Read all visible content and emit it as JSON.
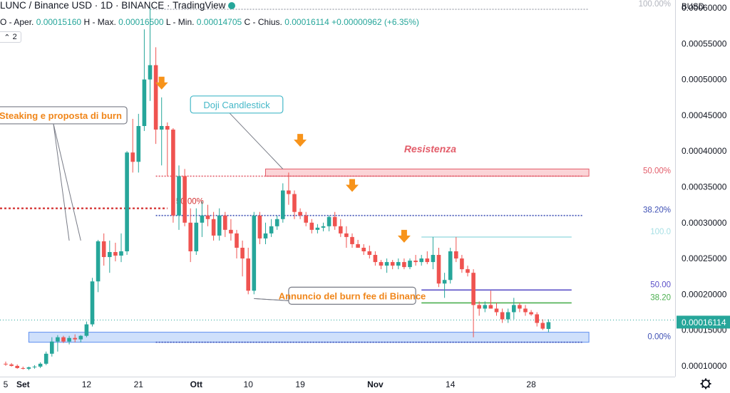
{
  "header": {
    "title": "LUNC / Binance USD · 1D · BINANCE · TradingView",
    "ohlc": {
      "open_label": "O - Aper.",
      "open": "0.00015160",
      "high_label": "H - Max.",
      "high": "0.00016500",
      "low_label": "L - Min.",
      "low": "0.00014705",
      "close_label": "C - Chius.",
      "close": "0.00016114",
      "change": "+0.00000962 (+6.35%)"
    },
    "collapse_badge": "2"
  },
  "chart_data": {
    "type": "candlestick",
    "currency_label": "BUSD",
    "y_axis_ticks": [
      "0.00060000",
      "0.00055000",
      "0.00050000",
      "0.00045000",
      "0.00040000",
      "0.00035000",
      "0.00030000",
      "0.00025000",
      "0.00020000",
      "0.00015000",
      "0.00010000"
    ],
    "y_range": [
      8.5e-05,
      0.000611
    ],
    "x_axis_ticks": [
      {
        "date": "2022-08-29",
        "label": "5"
      },
      {
        "date": "2022-09-01",
        "label": "Set"
      },
      {
        "date": "2022-09-12",
        "label": "12"
      },
      {
        "date": "2022-09-21",
        "label": "21"
      },
      {
        "date": "2022-10-01",
        "label": "Ott"
      },
      {
        "date": "2022-10-10",
        "label": "10"
      },
      {
        "date": "2022-10-19",
        "label": "19"
      },
      {
        "date": "2022-11-01",
        "label": "Nov"
      },
      {
        "date": "2022-11-14",
        "label": "14"
      },
      {
        "date": "2022-11-28",
        "label": "28"
      }
    ],
    "last_price_label": "0.00016114",
    "colors": {
      "up": "#26a69a",
      "down": "#ef5350",
      "accent": "#f7931a",
      "axis_text": "#131722",
      "resist": "#e35d6a"
    },
    "candles": [
      {
        "date": "2022-08-29",
        "o": 0.000103,
        "h": 0.000106,
        "l": 0.0001,
        "c": 0.000102
      },
      {
        "date": "2022-08-30",
        "o": 0.000102,
        "h": 0.000104,
        "l": 9.9e-05,
        "c": 0.0001
      },
      {
        "date": "2022-08-31",
        "o": 0.0001,
        "h": 0.000102,
        "l": 9.6e-05,
        "c": 9.7e-05
      },
      {
        "date": "2022-09-01",
        "o": 9.7e-05,
        "h": 9.9e-05,
        "l": 9.5e-05,
        "c": 9.6e-05
      },
      {
        "date": "2022-09-02",
        "o": 9.6e-05,
        "h": 9.9e-05,
        "l": 9.4e-05,
        "c": 9.8e-05
      },
      {
        "date": "2022-09-03",
        "o": 9.8e-05,
        "h": 0.000101,
        "l": 9.6e-05,
        "c": 9.9e-05
      },
      {
        "date": "2022-09-04",
        "o": 9.9e-05,
        "h": 0.000105,
        "l": 9.7e-05,
        "c": 0.000103
      },
      {
        "date": "2022-09-05",
        "o": 0.000103,
        "h": 0.00012,
        "l": 0.000101,
        "c": 0.000117
      },
      {
        "date": "2022-09-06",
        "o": 0.000117,
        "h": 0.00014,
        "l": 0.000113,
        "c": 0.000134
      },
      {
        "date": "2022-09-07",
        "o": 0.000134,
        "h": 0.000143,
        "l": 0.00012,
        "c": 0.00014
      },
      {
        "date": "2022-09-08",
        "o": 0.00014,
        "h": 0.000142,
        "l": 0.000132,
        "c": 0.000134
      },
      {
        "date": "2022-09-09",
        "o": 0.000134,
        "h": 0.000142,
        "l": 0.00013,
        "c": 0.000139
      },
      {
        "date": "2022-09-10",
        "o": 0.000139,
        "h": 0.000144,
        "l": 0.000133,
        "c": 0.000137
      },
      {
        "date": "2022-09-11",
        "o": 0.000137,
        "h": 0.000143,
        "l": 0.000133,
        "c": 0.000142
      },
      {
        "date": "2022-09-12",
        "o": 0.000142,
        "h": 0.000162,
        "l": 0.00014,
        "c": 0.000158
      },
      {
        "date": "2022-09-13",
        "o": 0.000158,
        "h": 0.000223,
        "l": 0.000155,
        "c": 0.000218
      },
      {
        "date": "2022-09-14",
        "o": 0.000218,
        "h": 0.000276,
        "l": 0.000203,
        "c": 0.000274
      },
      {
        "date": "2022-09-15",
        "o": 0.000274,
        "h": 0.000285,
        "l": 0.00024,
        "c": 0.000252
      },
      {
        "date": "2022-09-16",
        "o": 0.000252,
        "h": 0.000275,
        "l": 0.00023,
        "c": 0.000259
      },
      {
        "date": "2022-09-17",
        "o": 0.000259,
        "h": 0.000272,
        "l": 0.000246,
        "c": 0.000254
      },
      {
        "date": "2022-09-18",
        "o": 0.000254,
        "h": 0.000285,
        "l": 0.000245,
        "c": 0.00026
      },
      {
        "date": "2022-09-19",
        "o": 0.00026,
        "h": 0.0004,
        "l": 0.000255,
        "c": 0.000398
      },
      {
        "date": "2022-09-20",
        "o": 0.000398,
        "h": 0.000445,
        "l": 0.00037,
        "c": 0.000385
      },
      {
        "date": "2022-09-21",
        "o": 0.000385,
        "h": 0.000452,
        "l": 0.00037,
        "c": 0.000435
      },
      {
        "date": "2022-09-22",
        "o": 0.000435,
        "h": 0.00057,
        "l": 0.000428,
        "c": 0.0005
      },
      {
        "date": "2022-09-23",
        "o": 0.0005,
        "h": 0.0006,
        "l": 0.00047,
        "c": 0.00052
      },
      {
        "date": "2022-09-24",
        "o": 0.00052,
        "h": 0.000545,
        "l": 0.00041,
        "c": 0.00043
      },
      {
        "date": "2022-09-25",
        "o": 0.00043,
        "h": 0.000475,
        "l": 0.00038,
        "c": 0.000435
      },
      {
        "date": "2022-09-26",
        "o": 0.000435,
        "h": 0.00044,
        "l": 0.000365,
        "c": 0.00043
      },
      {
        "date": "2022-09-27",
        "o": 0.00043,
        "h": 0.000432,
        "l": 0.0003,
        "c": 0.00031
      },
      {
        "date": "2022-09-28",
        "o": 0.00031,
        "h": 0.00038,
        "l": 0.00029,
        "c": 0.000365
      },
      {
        "date": "2022-09-29",
        "o": 0.000365,
        "h": 0.000375,
        "l": 0.000295,
        "c": 0.0003
      },
      {
        "date": "2022-09-30",
        "o": 0.0003,
        "h": 0.00032,
        "l": 0.000245,
        "c": 0.00026
      },
      {
        "date": "2022-10-01",
        "o": 0.00026,
        "h": 0.00032,
        "l": 0.000255,
        "c": 0.0003
      },
      {
        "date": "2022-10-02",
        "o": 0.0003,
        "h": 0.00033,
        "l": 0.00028,
        "c": 0.00031
      },
      {
        "date": "2022-10-03",
        "o": 0.00031,
        "h": 0.000325,
        "l": 0.000295,
        "c": 0.000305
      },
      {
        "date": "2022-10-04",
        "o": 0.000305,
        "h": 0.000315,
        "l": 0.000275,
        "c": 0.000282
      },
      {
        "date": "2022-10-05",
        "o": 0.000282,
        "h": 0.00032,
        "l": 0.000275,
        "c": 0.00031
      },
      {
        "date": "2022-10-06",
        "o": 0.00031,
        "h": 0.000315,
        "l": 0.00028,
        "c": 0.00029
      },
      {
        "date": "2022-10-07",
        "o": 0.00029,
        "h": 0.000305,
        "l": 0.000275,
        "c": 0.000285
      },
      {
        "date": "2022-10-08",
        "o": 0.000285,
        "h": 0.00029,
        "l": 0.00025,
        "c": 0.000265
      },
      {
        "date": "2022-10-09",
        "o": 0.000265,
        "h": 0.000275,
        "l": 0.000225,
        "c": 0.00025
      },
      {
        "date": "2022-10-10",
        "o": 0.00025,
        "h": 0.000265,
        "l": 0.0002,
        "c": 0.000205
      },
      {
        "date": "2022-10-11",
        "o": 0.000205,
        "h": 0.000315,
        "l": 0.0002,
        "c": 0.00031
      },
      {
        "date": "2022-10-12",
        "o": 0.00031,
        "h": 0.000315,
        "l": 0.00027,
        "c": 0.000278
      },
      {
        "date": "2022-10-13",
        "o": 0.000278,
        "h": 0.0003,
        "l": 0.00027,
        "c": 0.000285
      },
      {
        "date": "2022-10-14",
        "o": 0.000285,
        "h": 0.000305,
        "l": 0.00028,
        "c": 0.000295
      },
      {
        "date": "2022-10-15",
        "o": 0.000295,
        "h": 0.00031,
        "l": 0.00029,
        "c": 0.000305
      },
      {
        "date": "2022-10-16",
        "o": 0.000305,
        "h": 0.000355,
        "l": 0.0003,
        "c": 0.000345
      },
      {
        "date": "2022-10-17",
        "o": 0.000345,
        "h": 0.00037,
        "l": 0.000325,
        "c": 0.00034
      },
      {
        "date": "2022-10-18",
        "o": 0.00034,
        "h": 0.000345,
        "l": 0.000305,
        "c": 0.000315
      },
      {
        "date": "2022-10-19",
        "o": 0.000315,
        "h": 0.00032,
        "l": 0.000305,
        "c": 0.00031
      },
      {
        "date": "2022-10-20",
        "o": 0.00031,
        "h": 0.000315,
        "l": 0.000295,
        "c": 0.0003
      },
      {
        "date": "2022-10-21",
        "o": 0.0003,
        "h": 0.000305,
        "l": 0.000285,
        "c": 0.00029
      },
      {
        "date": "2022-10-22",
        "o": 0.00029,
        "h": 0.000298,
        "l": 0.000285,
        "c": 0.000293
      },
      {
        "date": "2022-10-23",
        "o": 0.000293,
        "h": 0.0003,
        "l": 0.000288,
        "c": 0.000295
      },
      {
        "date": "2022-10-24",
        "o": 0.000295,
        "h": 0.00031,
        "l": 0.000288,
        "c": 0.000308
      },
      {
        "date": "2022-10-25",
        "o": 0.000308,
        "h": 0.000315,
        "l": 0.00029,
        "c": 0.000295
      },
      {
        "date": "2022-10-26",
        "o": 0.000295,
        "h": 0.000305,
        "l": 0.00028,
        "c": 0.000285
      },
      {
        "date": "2022-10-27",
        "o": 0.000285,
        "h": 0.000295,
        "l": 0.000265,
        "c": 0.00028
      },
      {
        "date": "2022-10-28",
        "o": 0.00028,
        "h": 0.000285,
        "l": 0.000265,
        "c": 0.00027
      },
      {
        "date": "2022-10-29",
        "o": 0.00027,
        "h": 0.000276,
        "l": 0.000265,
        "c": 0.000265
      },
      {
        "date": "2022-10-30",
        "o": 0.000265,
        "h": 0.00027,
        "l": 0.000255,
        "c": 0.00026
      },
      {
        "date": "2022-10-31",
        "o": 0.00026,
        "h": 0.000268,
        "l": 0.00025,
        "c": 0.000255
      },
      {
        "date": "2022-11-01",
        "o": 0.000255,
        "h": 0.00026,
        "l": 0.00024,
        "c": 0.000245
      },
      {
        "date": "2022-11-02",
        "o": 0.000245,
        "h": 0.000248,
        "l": 0.000235,
        "c": 0.00024
      },
      {
        "date": "2022-11-03",
        "o": 0.00024,
        "h": 0.00025,
        "l": 0.00023,
        "c": 0.000245
      },
      {
        "date": "2022-11-04",
        "o": 0.000245,
        "h": 0.000248,
        "l": 0.000235,
        "c": 0.00024
      },
      {
        "date": "2022-11-05",
        "o": 0.00024,
        "h": 0.00025,
        "l": 0.000235,
        "c": 0.000245
      },
      {
        "date": "2022-11-06",
        "o": 0.000245,
        "h": 0.00025,
        "l": 0.000235,
        "c": 0.000238
      },
      {
        "date": "2022-11-07",
        "o": 0.000238,
        "h": 0.00025,
        "l": 0.000235,
        "c": 0.000247
      },
      {
        "date": "2022-11-08",
        "o": 0.000247,
        "h": 0.000255,
        "l": 0.00024,
        "c": 0.000245
      },
      {
        "date": "2022-11-09",
        "o": 0.000245,
        "h": 0.000255,
        "l": 0.00024,
        "c": 0.00025
      },
      {
        "date": "2022-11-10",
        "o": 0.00025,
        "h": 0.00026,
        "l": 0.000242,
        "c": 0.000245
      },
      {
        "date": "2022-11-11",
        "o": 0.000245,
        "h": 0.00028,
        "l": 0.000235,
        "c": 0.000255
      },
      {
        "date": "2022-11-12",
        "o": 0.000255,
        "h": 0.000265,
        "l": 0.00021,
        "c": 0.000215
      },
      {
        "date": "2022-11-13",
        "o": 0.000215,
        "h": 0.00023,
        "l": 0.000195,
        "c": 0.00022
      },
      {
        "date": "2022-11-14",
        "o": 0.00022,
        "h": 0.000265,
        "l": 0.000215,
        "c": 0.00026
      },
      {
        "date": "2022-11-15",
        "o": 0.00026,
        "h": 0.00028,
        "l": 0.000245,
        "c": 0.00025
      },
      {
        "date": "2022-11-16",
        "o": 0.00025,
        "h": 0.000255,
        "l": 0.00023,
        "c": 0.000235
      },
      {
        "date": "2022-11-17",
        "o": 0.000235,
        "h": 0.00024,
        "l": 0.000225,
        "c": 0.00023
      },
      {
        "date": "2022-11-18",
        "o": 0.00023,
        "h": 0.000235,
        "l": 0.00014,
        "c": 0.000185
      },
      {
        "date": "2022-11-19",
        "o": 0.000185,
        "h": 0.00019,
        "l": 0.00017,
        "c": 0.00018
      },
      {
        "date": "2022-11-20",
        "o": 0.00018,
        "h": 0.00019,
        "l": 0.000175,
        "c": 0.000185
      },
      {
        "date": "2022-11-21",
        "o": 0.000185,
        "h": 0.000205,
        "l": 0.00018,
        "c": 0.00018
      },
      {
        "date": "2022-11-22",
        "o": 0.00018,
        "h": 0.000188,
        "l": 0.00017,
        "c": 0.000175
      },
      {
        "date": "2022-11-23",
        "o": 0.000175,
        "h": 0.00018,
        "l": 0.00016,
        "c": 0.000165
      },
      {
        "date": "2022-11-24",
        "o": 0.000165,
        "h": 0.00018,
        "l": 0.00016,
        "c": 0.000175
      },
      {
        "date": "2022-11-25",
        "o": 0.000175,
        "h": 0.000195,
        "l": 0.000165,
        "c": 0.000185
      },
      {
        "date": "2022-11-26",
        "o": 0.000185,
        "h": 0.000188,
        "l": 0.000175,
        "c": 0.00018
      },
      {
        "date": "2022-11-27",
        "o": 0.00018,
        "h": 0.000185,
        "l": 0.00017,
        "c": 0.000175
      },
      {
        "date": "2022-11-28",
        "o": 0.000175,
        "h": 0.000178,
        "l": 0.00017,
        "c": 0.000172
      },
      {
        "date": "2022-11-29",
        "o": 0.000172,
        "h": 0.000175,
        "l": 0.000155,
        "c": 0.00016
      },
      {
        "date": "2022-11-30",
        "o": 0.00016,
        "h": 0.000165,
        "l": 0.00015,
        "c": 0.000152
      },
      {
        "date": "2022-12-01",
        "o": 0.0001516,
        "h": 0.000165,
        "l": 0.000147,
        "c": 0.0001611
      }
    ],
    "fib_levels": [
      {
        "label": "100.00%",
        "value": 0.000598,
        "from": "2022-09-23",
        "to": "2022-12-08",
        "color": "#b2b5be",
        "dashed": true
      },
      {
        "label": "50.00%",
        "value": 0.000365,
        "from": "2022-09-24",
        "to": "2022-12-07",
        "color": "#e35d6a",
        "dashed": true
      },
      {
        "label": "38.20%",
        "value": 0.00031,
        "from": "2022-09-24",
        "to": "2022-12-07",
        "color": "#3f51b5",
        "dashed": true
      },
      {
        "label": "0.00%",
        "value": 0.000133,
        "from": "2022-09-24",
        "to": "2022-12-07",
        "color": "#3f51b5",
        "dashed": true
      },
      {
        "label": "100.0",
        "value": 0.00028,
        "from": "2022-11-09",
        "to": "2022-12-05",
        "color": "#a8e0e5",
        "dashed": false
      },
      {
        "label": "50.00",
        "value": 0.000206,
        "from": "2022-11-09",
        "to": "2022-12-05",
        "color": "#5b50c8",
        "dashed": false
      },
      {
        "label": "38.20",
        "value": 0.000188,
        "from": "2022-11-09",
        "to": "2022-12-05",
        "color": "#4caf50",
        "dashed": false
      }
    ],
    "lines": [
      {
        "label": "50.00%",
        "value": 0.00032,
        "color": "#d32f2f",
        "dashed": true
      },
      {
        "value": 0.000164,
        "color": "#26a69a",
        "dashed": true
      }
    ],
    "zones": [
      {
        "from": "2022-10-13",
        "to": "2022-12-08",
        "top": 0.000375,
        "bottom": 0.000365,
        "fill": "#fbd4d7",
        "stroke": "#e35d6a"
      },
      {
        "from": "2022-09-02",
        "to": "2022-12-08",
        "top": 0.000147,
        "bottom": 0.000133,
        "fill": "#cfe0fb",
        "stroke": "#5b8def"
      }
    ],
    "resistance_label": "Resistenza",
    "down_arrows": [
      {
        "date": "2022-09-25",
        "price": 0.00049
      },
      {
        "date": "2022-10-19",
        "price": 0.00041
      },
      {
        "date": "2022-10-28",
        "price": 0.000347
      },
      {
        "date": "2022-11-06",
        "price": 0.000276
      }
    ],
    "callouts": [
      {
        "text": "Steaking e proposta di burn",
        "color": "#f0861a",
        "box_from": "2022-08-27",
        "box_to": "2022-09-19",
        "price": 0.00045,
        "points": [
          {
            "date": "2022-09-09",
            "price": 0.000275
          },
          {
            "date": "2022-09-11",
            "price": 0.000275
          }
        ]
      },
      {
        "text": "Doji Candlestick",
        "color": "#45b8c8",
        "box_from": "2022-09-30",
        "box_to": "2022-10-16",
        "price": 0.000465,
        "points": [
          {
            "date": "2022-10-16",
            "price": 0.000375
          }
        ]
      },
      {
        "text": "Annuncio del burn fee di Binance",
        "color": "#f0861a",
        "box_from": "2022-10-17",
        "box_to": "2022-11-08",
        "price": 0.000198,
        "points": [
          {
            "date": "2022-10-11",
            "price": 0.000194
          },
          {
            "date": "2022-10-11",
            "price": 0.000194
          }
        ]
      }
    ]
  }
}
